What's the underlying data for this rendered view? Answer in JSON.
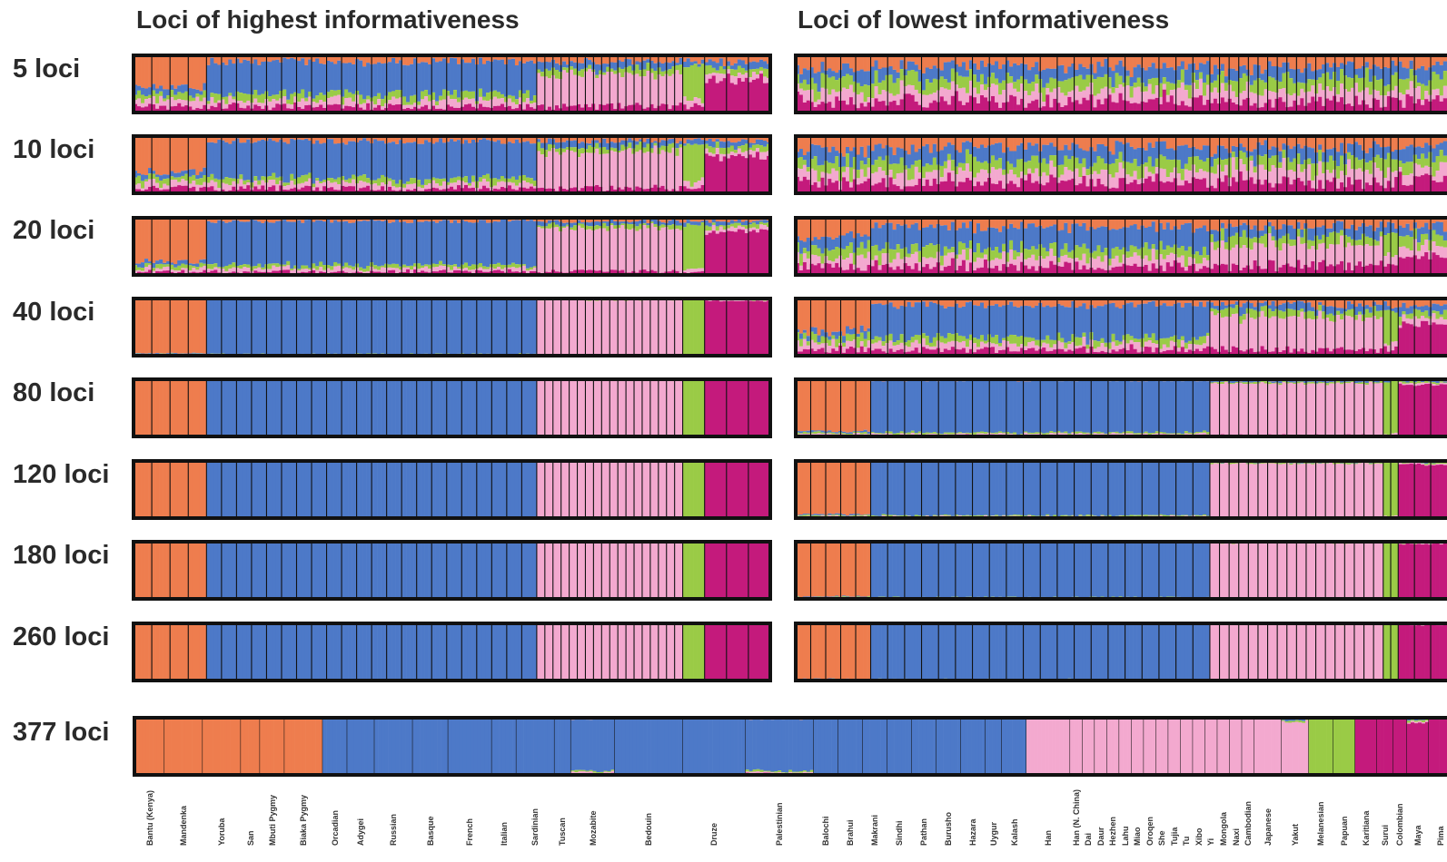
{
  "chart_data": {
    "type": "bar",
    "left_title": "Loci of highest informativeness",
    "right_title": "Loci of lowest informativeness",
    "row_labels": [
      "5 loci",
      "10 loci",
      "20 loci",
      "40 loci",
      "80 loci",
      "120 loci",
      "180 loci",
      "260 loci",
      "377 loci"
    ],
    "colors": {
      "orange": "#EE7D4E",
      "blue": "#4D79C8",
      "green": "#9ACB46",
      "pink": "#F3A9CF",
      "magenta": "#C41A7C"
    },
    "populations": [
      {
        "name": "Bantu (Kenya)",
        "cluster": "orange"
      },
      {
        "name": "Mandenka",
        "cluster": "orange"
      },
      {
        "name": "Yoruba",
        "cluster": "orange"
      },
      {
        "name": "San",
        "cluster": "orange"
      },
      {
        "name": "Mbuti Pygmy",
        "cluster": "orange"
      },
      {
        "name": "Biaka Pygmy",
        "cluster": "orange"
      },
      {
        "name": "Orcadian",
        "cluster": "blue"
      },
      {
        "name": "Adygei",
        "cluster": "blue"
      },
      {
        "name": "Russian",
        "cluster": "blue"
      },
      {
        "name": "Basque",
        "cluster": "blue"
      },
      {
        "name": "French",
        "cluster": "blue"
      },
      {
        "name": "Italian",
        "cluster": "blue"
      },
      {
        "name": "Sardinian",
        "cluster": "blue"
      },
      {
        "name": "Tuscan",
        "cluster": "blue"
      },
      {
        "name": "Mozabite",
        "cluster": "blue"
      },
      {
        "name": "Bedouin",
        "cluster": "blue"
      },
      {
        "name": "Druze",
        "cluster": "blue"
      },
      {
        "name": "Palestinian",
        "cluster": "blue"
      },
      {
        "name": "Balochi",
        "cluster": "blue"
      },
      {
        "name": "Brahui",
        "cluster": "blue"
      },
      {
        "name": "Makrani",
        "cluster": "blue"
      },
      {
        "name": "Sindhi",
        "cluster": "blue"
      },
      {
        "name": "Pathan",
        "cluster": "blue"
      },
      {
        "name": "Burusho",
        "cluster": "blue"
      },
      {
        "name": "Hazara",
        "cluster": "blue"
      },
      {
        "name": "Uygur",
        "cluster": "blue"
      },
      {
        "name": "Kalash",
        "cluster": "blue"
      },
      {
        "name": "Han",
        "cluster": "pink"
      },
      {
        "name": "Han (N. China)",
        "cluster": "pink"
      },
      {
        "name": "Dai",
        "cluster": "pink"
      },
      {
        "name": "Daur",
        "cluster": "pink"
      },
      {
        "name": "Hezhen",
        "cluster": "pink"
      },
      {
        "name": "Lahu",
        "cluster": "pink"
      },
      {
        "name": "Miao",
        "cluster": "pink"
      },
      {
        "name": "Oroqen",
        "cluster": "pink"
      },
      {
        "name": "She",
        "cluster": "pink"
      },
      {
        "name": "Tujia",
        "cluster": "pink"
      },
      {
        "name": "Tu",
        "cluster": "pink"
      },
      {
        "name": "Xibo",
        "cluster": "pink"
      },
      {
        "name": "Yi",
        "cluster": "pink"
      },
      {
        "name": "Mongola",
        "cluster": "pink"
      },
      {
        "name": "Naxi",
        "cluster": "pink"
      },
      {
        "name": "Cambodian",
        "cluster": "pink"
      },
      {
        "name": "Japanese",
        "cluster": "pink"
      },
      {
        "name": "Yakut",
        "cluster": "pink"
      },
      {
        "name": "Melanesian",
        "cluster": "green"
      },
      {
        "name": "Papuan",
        "cluster": "green"
      },
      {
        "name": "Karitiana",
        "cluster": "magenta"
      },
      {
        "name": "Surui",
        "cluster": "magenta"
      },
      {
        "name": "Colombian",
        "cluster": "magenta"
      },
      {
        "name": "Maya",
        "cluster": "magenta"
      },
      {
        "name": "Pima",
        "cluster": "magenta"
      }
    ]
  }
}
